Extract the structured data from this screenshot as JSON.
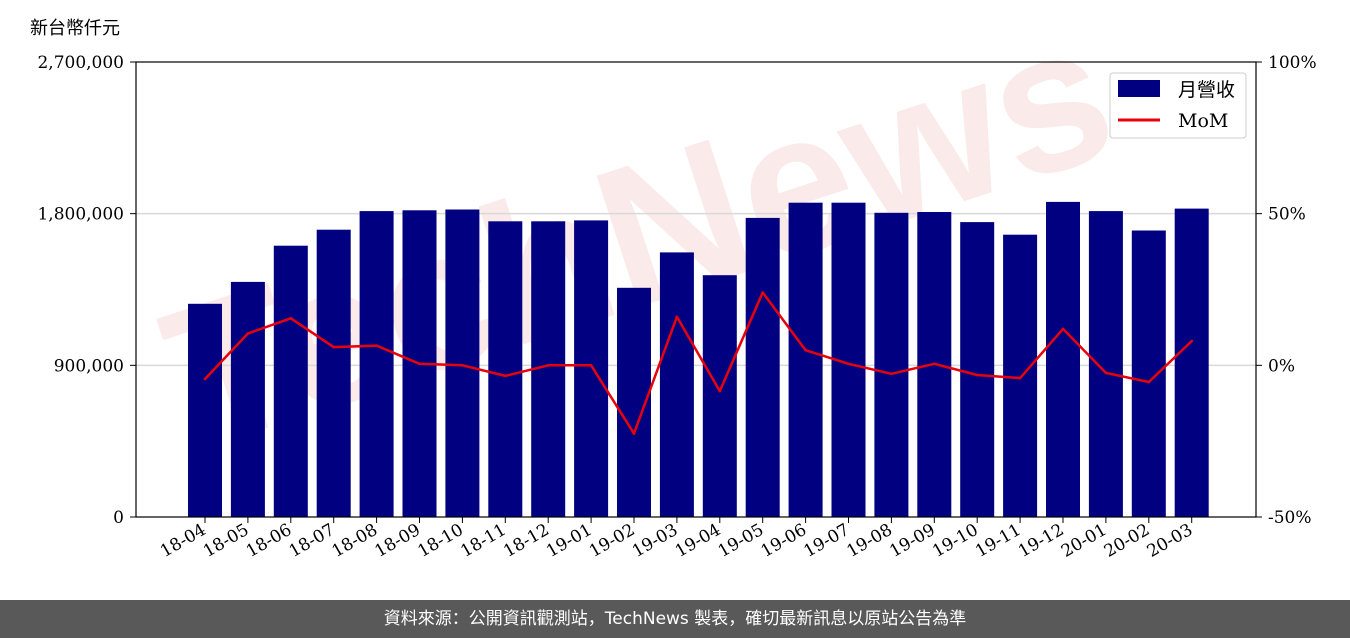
{
  "unit_label": "新台幣仟元",
  "footer_text": "資料來源：公開資訊觀測站，TechNews 製表，確切最新訊息以原站公告為準",
  "watermark_text": "TechNews",
  "colors": {
    "bar": "#000080",
    "line": "#e8000b",
    "grid": "#d9d9d9",
    "footer_bg": "#595959"
  },
  "chart_data": {
    "type": "bar",
    "categories": [
      "18-04",
      "18-05",
      "18-06",
      "18-07",
      "18-08",
      "18-09",
      "18-10",
      "18-11",
      "18-12",
      "19-01",
      "19-02",
      "19-03",
      "19-04",
      "19-05",
      "19-06",
      "19-07",
      "19-08",
      "19-09",
      "19-10",
      "19-11",
      "19-12",
      "20-01",
      "20-02",
      "20-03"
    ],
    "series": [
      {
        "name": "月營收",
        "type": "bar",
        "axis": "left",
        "values": [
          1265000,
          1395000,
          1610000,
          1705000,
          1815000,
          1820000,
          1825000,
          1755000,
          1755000,
          1760000,
          1360000,
          1570000,
          1435000,
          1775000,
          1865000,
          1865000,
          1805000,
          1810000,
          1750000,
          1675000,
          1870000,
          1815000,
          1700000,
          1830000
        ]
      },
      {
        "name": "MoM",
        "type": "line",
        "axis": "right",
        "values": [
          -4.5,
          10.5,
          15.5,
          6,
          6.5,
          0.5,
          0,
          -3.5,
          0,
          0,
          -22.5,
          16,
          -8.5,
          24,
          5,
          0.5,
          -2.8,
          0.5,
          -3.2,
          -4.2,
          12,
          -2.5,
          -5.5,
          8
        ]
      }
    ],
    "y_left": {
      "ylim": [
        0,
        2700000
      ],
      "ticks": [
        "0",
        "900,000",
        "1,800,000",
        "2,700,000"
      ]
    },
    "y_right": {
      "ylim": [
        -50,
        100
      ],
      "ticks": [
        "-50%",
        "0%",
        "50%",
        "100%"
      ]
    },
    "grid": "horizontal",
    "legend": "top-right"
  }
}
